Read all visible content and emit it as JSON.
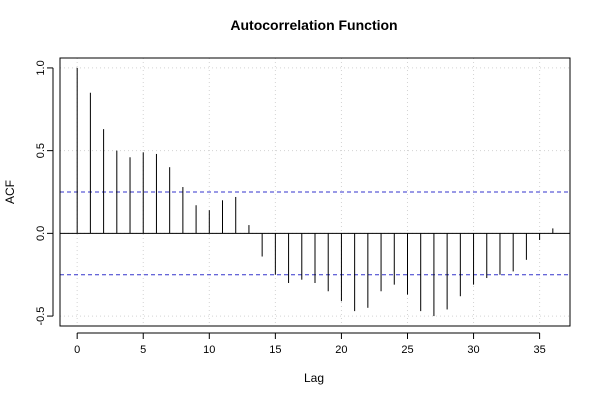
{
  "chart_data": {
    "type": "bar",
    "title": "Autocorrelation Function",
    "xlabel": "Lag",
    "ylabel": "ACF",
    "xlim": [
      -1.3,
      37.3
    ],
    "ylim": [
      -0.56,
      1.06
    ],
    "x_ticks": [
      0,
      5,
      10,
      15,
      20,
      25,
      30,
      35
    ],
    "x_tick_labels": [
      "0",
      "5",
      "10",
      "15",
      "20",
      "25",
      "30",
      "35"
    ],
    "y_ticks": [
      -0.5,
      0.0,
      0.5,
      1.0
    ],
    "y_tick_labels": [
      "-0.5",
      "0.0",
      "0.5",
      "1.0"
    ],
    "grid": true,
    "confidence_bounds": [
      0.25,
      -0.25
    ],
    "bound_color": "#3333cc",
    "bar_color": "#000000",
    "lags": [
      0,
      1,
      2,
      3,
      4,
      5,
      6,
      7,
      8,
      9,
      10,
      11,
      12,
      13,
      14,
      15,
      16,
      17,
      18,
      19,
      20,
      21,
      22,
      23,
      24,
      25,
      26,
      27,
      28,
      29,
      30,
      31,
      32,
      33,
      34,
      35,
      36
    ],
    "values": [
      1.0,
      0.85,
      0.63,
      0.5,
      0.46,
      0.49,
      0.48,
      0.4,
      0.28,
      0.17,
      0.14,
      0.2,
      0.22,
      0.05,
      -0.14,
      -0.25,
      -0.3,
      -0.28,
      -0.3,
      -0.35,
      -0.41,
      -0.47,
      -0.45,
      -0.35,
      -0.31,
      -0.37,
      -0.47,
      -0.5,
      -0.46,
      -0.38,
      -0.31,
      -0.27,
      -0.25,
      -0.23,
      -0.16,
      -0.04,
      0.03
    ]
  }
}
